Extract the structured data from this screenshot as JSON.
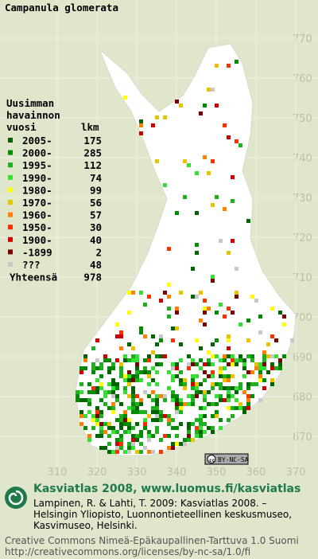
{
  "header": {
    "title": "Campanula glomerata"
  },
  "legend": {
    "heading": [
      "Uusimman",
      "havainnon"
    ],
    "col_year": "vuosi",
    "col_count": "lkm",
    "rows": [
      {
        "label": "2005-",
        "count": 175,
        "color": "#006400"
      },
      {
        "label": "2000-",
        "count": 285,
        "color": "#008c00"
      },
      {
        "label": "1995-",
        "count": 112,
        "color": "#1fb01f"
      },
      {
        "label": "1990-",
        "count": 74,
        "color": "#33e033"
      },
      {
        "label": "1980-",
        "count": 99,
        "color": "#ffff00"
      },
      {
        "label": "1970-",
        "count": 56,
        "color": "#e8c400"
      },
      {
        "label": "1960-",
        "count": 57,
        "color": "#ff8000"
      },
      {
        "label": "1950-",
        "count": 30,
        "color": "#ff3000"
      },
      {
        "label": "1900-",
        "count": 40,
        "color": "#d00000"
      },
      {
        "label": "-1899",
        "count": 2,
        "color": "#7a0000"
      },
      {
        "label": "???",
        "count": 48,
        "color": "#c8c8c8"
      }
    ],
    "total_label": "Yhteensä",
    "total": 978
  },
  "grid": {
    "north": [
      770,
      760,
      750,
      740,
      730,
      720,
      710,
      700,
      690,
      680,
      670
    ],
    "east": [
      310,
      320,
      330,
      340,
      350,
      360,
      370
    ]
  },
  "license_badge": "BY-NC-SA",
  "footer": {
    "site": "Kasviatlas 2008, www.luomus.fi/kasviatlas",
    "citation": [
      "Lampinen, R. & Lahti, T. 2009: Kasviatlas 2008. –",
      "Helsingin Yliopisto, Luonnontieteellinen keskusmuseo,",
      "Kasvimuseo, Helsinki."
    ],
    "license": [
      "Creative Commons Nimeä-Epäkaupallinen-Tarttuva 1.0 Suomi",
      "http://creativecommons.org/licenses/by-nc-sa/1.0/fi"
    ]
  }
}
